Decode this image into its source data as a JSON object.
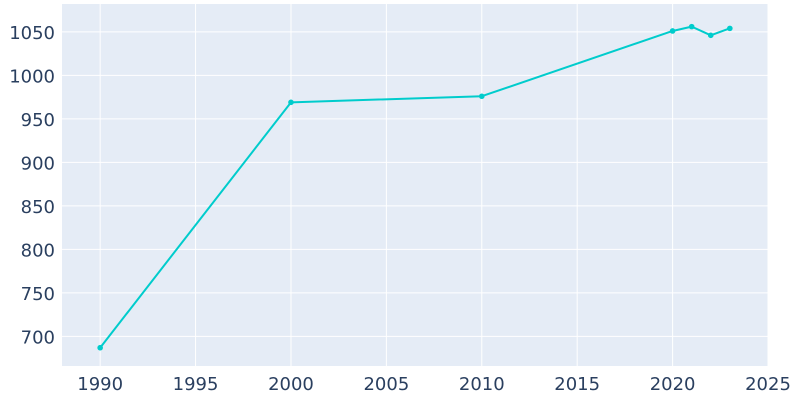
{
  "chart_data": {
    "type": "line",
    "x": [
      1990,
      2000,
      2010,
      2020,
      2021,
      2022,
      2023
    ],
    "series": [
      {
        "values": [
          687,
          969,
          976,
          1051,
          1056,
          1046,
          1054
        ],
        "color": "#00cccc"
      }
    ],
    "xlim": [
      1988,
      2025
    ],
    "ylim": [
      666,
      1082
    ],
    "xticks": [
      1990,
      1995,
      2000,
      2005,
      2010,
      2015,
      2020,
      2025
    ],
    "yticks": [
      700,
      750,
      800,
      850,
      900,
      950,
      1000,
      1050
    ],
    "grid": true,
    "legend": false,
    "colors": {
      "plot_background": "#e5ecf6",
      "grid": "#ffffff",
      "tick_text": "#2a3f5f"
    }
  }
}
